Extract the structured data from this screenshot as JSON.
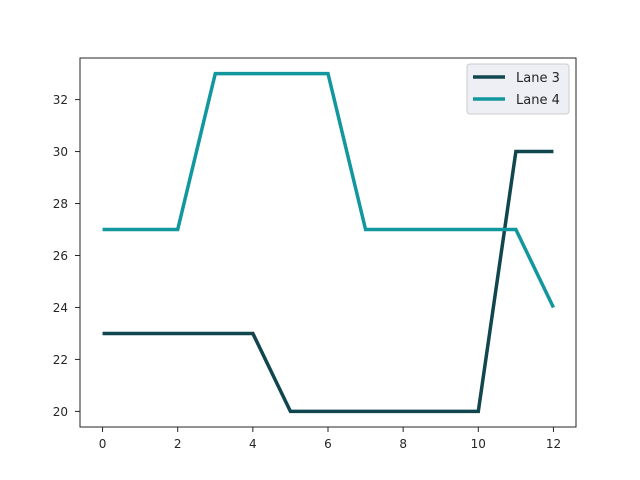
{
  "chart_data": {
    "type": "line",
    "title": "",
    "xlabel": "",
    "ylabel": "",
    "x": [
      0,
      1,
      2,
      3,
      4,
      5,
      6,
      7,
      8,
      9,
      10,
      11,
      12
    ],
    "xlim": [
      -0.6,
      12.6
    ],
    "ylim": [
      19.4,
      33.6
    ],
    "xticks": [
      0,
      2,
      4,
      6,
      8,
      10,
      12
    ],
    "yticks": [
      20,
      22,
      24,
      26,
      28,
      30,
      32
    ],
    "grid": false,
    "legend_position": "top-right",
    "series": [
      {
        "name": "Lane 3",
        "color": "#11464f",
        "values": [
          23,
          23,
          23,
          23,
          23,
          20,
          20,
          20,
          20,
          20,
          20,
          30,
          30
        ]
      },
      {
        "name": "Lane 4",
        "color": "#12979e",
        "values": [
          27,
          27,
          27,
          33,
          33,
          33,
          33,
          27,
          27,
          27,
          27,
          27,
          24
        ]
      }
    ]
  }
}
